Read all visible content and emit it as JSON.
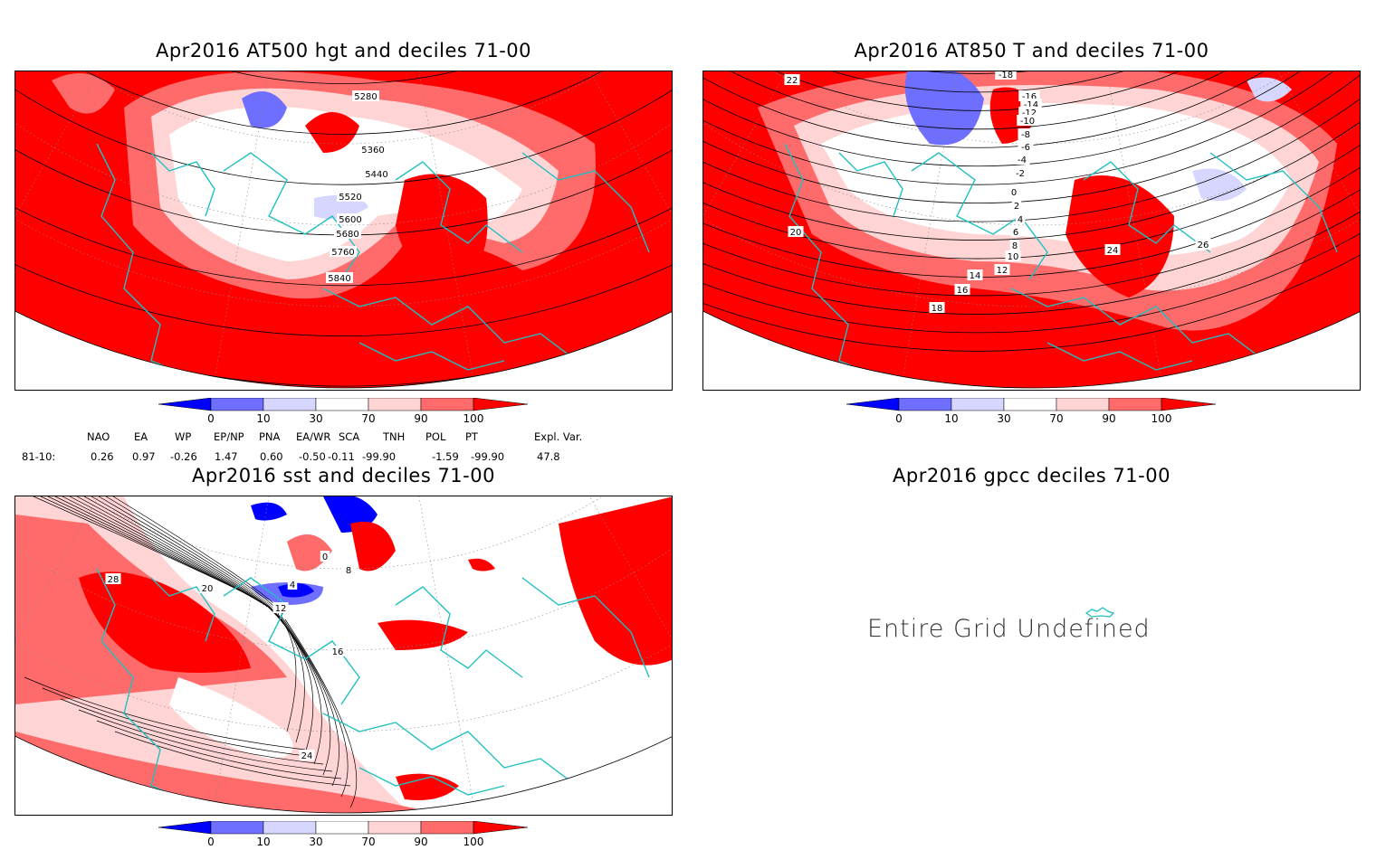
{
  "colors": {
    "d0_10": "#0000ff",
    "d10_30": "#6e6eff",
    "d30_40": "#d6d6ff",
    "d70_90": "#ffd4d4",
    "d90_100": "#ff6a6a",
    "d100": "#ff0000",
    "coast": "#20c0c0"
  },
  "legend_ticks": [
    "0",
    "10",
    "30",
    "70",
    "90",
    "100"
  ],
  "panels": [
    {
      "title": "Apr2016 AT500 hgt and deciles 71-00",
      "contour_labels": [
        "5280",
        "5360",
        "5440",
        "5520",
        "5600",
        "5680",
        "5760",
        "5840"
      ]
    },
    {
      "title": "Apr2016 AT850 T and deciles 71-00",
      "contour_labels": [
        "-18",
        "-16",
        "-14",
        "-12",
        "-10",
        "-8",
        "-6",
        "-4",
        "-2",
        "0",
        "2",
        "4",
        "6",
        "8",
        "10",
        "12",
        "14",
        "16",
        "18",
        "20",
        "22",
        "24",
        "26"
      ]
    },
    {
      "title": "Apr2016 sst and deciles 71-00",
      "contour_labels": [
        "28",
        "20",
        "12",
        "4",
        "0",
        "8",
        "16",
        "24"
      ]
    },
    {
      "title": "Apr2016 gpcc deciles 71-00",
      "message": "Entire Grid Undefined"
    }
  ],
  "indices": {
    "headers": [
      "NAO",
      "EA",
      "WP",
      "EP/NP",
      "PNA",
      "EA/WR",
      "SCA",
      "TNH",
      "POL",
      "PT",
      "Expl. Var."
    ],
    "row_label": "81-10:",
    "values": [
      "0.26",
      "0.97",
      "-0.26",
      "1.47",
      "0.60",
      "-0.50",
      "-0.11",
      "-99.90",
      "-1.59",
      "-99.90",
      "47.8"
    ]
  }
}
